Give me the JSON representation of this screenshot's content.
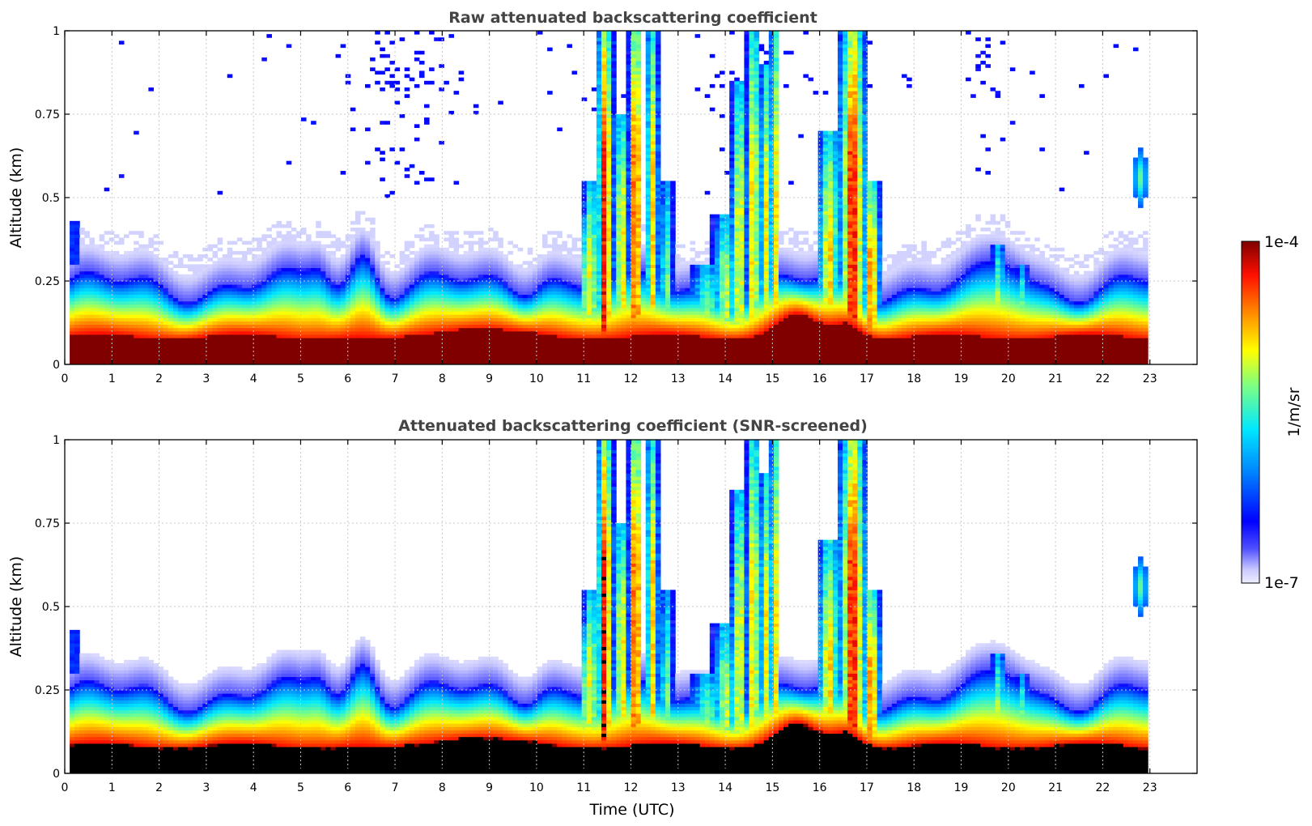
{
  "chart_data": [
    {
      "type": "heatmap",
      "title": "Raw attenuated backscattering coefficient",
      "xlabel": "",
      "ylabel": "Altitude (km)",
      "xlim": [
        0,
        24
      ],
      "ylim": [
        0,
        1
      ],
      "x_ticks": [
        "0",
        "1",
        "2",
        "3",
        "4",
        "5",
        "6",
        "7",
        "8",
        "9",
        "10",
        "11",
        "12",
        "13",
        "14",
        "15",
        "16",
        "17",
        "18",
        "19",
        "20",
        "21",
        "22",
        "23"
      ],
      "y_ticks": [
        "0",
        "0.25",
        "0.5",
        "0.75",
        "1"
      ],
      "grid": true,
      "data_extent_hours": [
        0.08,
        23.0
      ],
      "screened": false,
      "colormap": "jet",
      "colorbar": {
        "min_label": "1e-7",
        "max_label": "1e-4",
        "label": "1/m/sr",
        "scale": "log"
      }
    },
    {
      "type": "heatmap",
      "title": "Attenuated backscattering coefficient (SNR-screened)",
      "xlabel": "Time (UTC)",
      "ylabel": "Altitude (km)",
      "xlim": [
        0,
        24
      ],
      "ylim": [
        0,
        1
      ],
      "x_ticks": [
        "0",
        "1",
        "2",
        "3",
        "4",
        "5",
        "6",
        "7",
        "8",
        "9",
        "10",
        "11",
        "12",
        "13",
        "14",
        "15",
        "16",
        "17",
        "18",
        "19",
        "20",
        "21",
        "22",
        "23"
      ],
      "y_ticks": [
        "0",
        "0.25",
        "0.5",
        "0.75",
        "1"
      ],
      "grid": true,
      "data_extent_hours": [
        0.08,
        23.0
      ],
      "screened": true,
      "colormap": "jet",
      "colorbar": {
        "min_label": "1e-7",
        "max_label": "1e-4",
        "label": "1/m/sr",
        "scale": "log"
      }
    }
  ],
  "colorbar": {
    "min_label": "1e-7",
    "max_label": "1e-4",
    "label": "1/m/sr"
  },
  "colors": {
    "saturated_raw": "#800000",
    "screened_core": "#000000",
    "axis": "#000000",
    "title": "#444444",
    "grid": "#c8c8c8"
  }
}
